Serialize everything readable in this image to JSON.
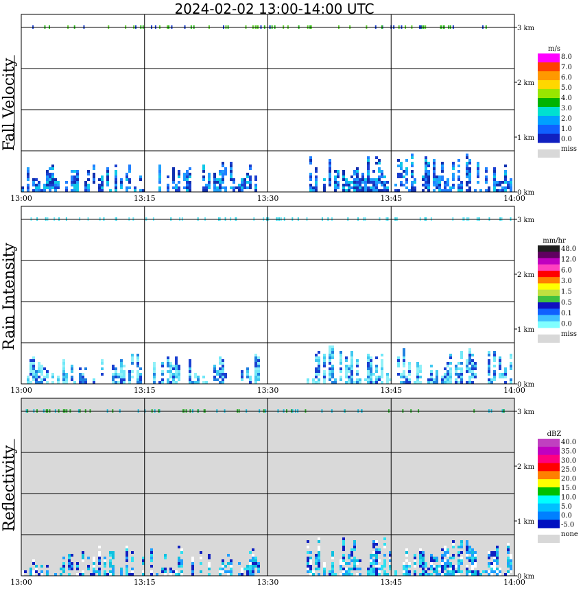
{
  "title": "2024-02-02   13:00-14:00 UTC",
  "chart_data": [
    {
      "type": "heatmap",
      "ylabel": "Fall Velocity",
      "x_ticks": [
        "13:00",
        "13:15",
        "13:30",
        "13:45",
        "14:00"
      ],
      "y_ticks": [
        "0 km",
        "1 km",
        "2 km",
        "3 km"
      ],
      "ylim": [
        0,
        3.25
      ],
      "xlim": [
        "13:00",
        "14:00"
      ],
      "grid": true,
      "background": "#ffffff",
      "legend": {
        "unit": "m/s",
        "labels": [
          "8.0",
          "7.0",
          "6.0",
          "5.0",
          "4.0",
          "3.0",
          "2.0",
          "1.0",
          "0.0"
        ],
        "colors": [
          "#ff00ff",
          "#ff4000",
          "#ff9900",
          "#ffd700",
          "#99e600",
          "#00b300",
          "#00e0d0",
          "#00a0ff",
          "#1060ff",
          "#1020c0"
        ],
        "missing_label": "miss",
        "missing_color": "#d8d8d8"
      },
      "echo_colors": [
        "#1a3fd0",
        "#2080ff",
        "#10c8e8",
        "#1030b0",
        "#20a0ff"
      ],
      "top_colors": [
        "#30c020",
        "#60d030",
        "#1a3fd0"
      ]
    },
    {
      "type": "heatmap",
      "ylabel": "Rain Intensity",
      "x_ticks": [
        "13:00",
        "13:15",
        "13:30",
        "13:45",
        "14:00"
      ],
      "y_ticks": [
        "0 km",
        "1 km",
        "2 km",
        "3 km"
      ],
      "ylim": [
        0,
        3.25
      ],
      "xlim": [
        "13:00",
        "14:00"
      ],
      "grid": true,
      "background": "#ffffff",
      "legend": {
        "unit": "mm/hr",
        "labels": [
          "48.0",
          "12.0",
          "6.0",
          "3.0",
          "1.5",
          "0.5",
          "0.1",
          "0.0"
        ],
        "colors": [
          "#202020",
          "#600060",
          "#c000c0",
          "#ff40c0",
          "#ff0000",
          "#ff8000",
          "#ffff00",
          "#c0e040",
          "#40c040",
          "#1010c0",
          "#1060ff",
          "#40c0ff",
          "#80ffff"
        ],
        "missing_label": "miss",
        "missing_color": "#d8d8d8"
      },
      "echo_colors": [
        "#90f0f8",
        "#70e8f8",
        "#40c8f0",
        "#2080e0",
        "#1a3fd0"
      ],
      "top_colors": [
        "#40d8e8",
        "#70e8f8"
      ]
    },
    {
      "type": "heatmap",
      "ylabel": "Reflectivity",
      "x_ticks": [
        "13:00",
        "13:15",
        "13:30",
        "13:45",
        "14:00"
      ],
      "y_ticks": [
        "0 km",
        "1 km",
        "2 km",
        "3 km"
      ],
      "ylim": [
        0,
        3.25
      ],
      "xlim": [
        "13:00",
        "14:00"
      ],
      "grid": true,
      "background": "#d9d9d9",
      "legend": {
        "unit": "dBZ",
        "labels": [
          "40.0",
          "35.0",
          "30.0",
          "25.0",
          "20.0",
          "15.0",
          "10.0",
          "5.0",
          "0.0",
          "-5.0"
        ],
        "colors": [
          "#c040c0",
          "#c000c0",
          "#ff0080",
          "#ff0000",
          "#ff8000",
          "#ffff00",
          "#00c000",
          "#00ffff",
          "#00c0ff",
          "#0080ff",
          "#0010c0"
        ],
        "missing_label": "none",
        "missing_color": "#d8d8d8"
      },
      "echo_colors": [
        "#1020c0",
        "#20a0ff",
        "#30e0f0",
        "#10c0e0",
        "#ffffff"
      ],
      "top_colors": [
        "#20c0e0",
        "#30b030"
      ]
    }
  ]
}
